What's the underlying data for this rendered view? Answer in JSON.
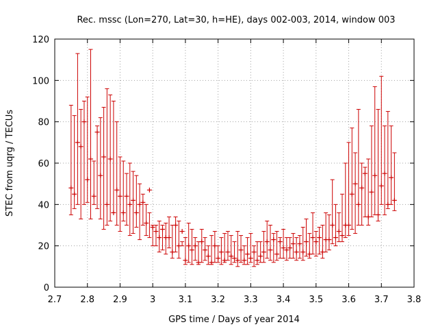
{
  "chart_data": {
    "type": "scatter",
    "style": "errorbars",
    "title": "Rec. mssc (Lon=270, Lat=30, h=HE), days 002-003, 2014, window 003",
    "xlabel": "GPS time / Days of year 2014",
    "ylabel": "STEC from uqrg / TECUs",
    "xlim": [
      2.7,
      3.8
    ],
    "ylim": [
      0,
      120
    ],
    "x_ticks": [
      "2.7",
      "2.8",
      "2.9",
      "3",
      "3.1",
      "3.2",
      "3.3",
      "3.4",
      "3.5",
      "3.6",
      "3.7",
      "3.8"
    ],
    "y_ticks": [
      "0",
      "20",
      "40",
      "60",
      "80",
      "100",
      "120"
    ],
    "grid": true,
    "color": "#cc0000",
    "grid_color": "#a0a0a0",
    "series": [
      {
        "x": [
          2.75,
          2.76,
          2.77,
          2.78,
          2.79,
          2.8,
          2.81,
          2.82,
          2.83,
          2.84,
          2.85,
          2.86,
          2.87,
          2.88,
          2.89,
          2.9,
          2.91,
          2.92,
          2.93,
          2.94,
          2.95,
          2.96,
          2.97,
          2.98,
          2.99,
          3.0,
          3.01,
          3.02,
          3.03,
          3.04,
          3.05,
          3.06,
          3.07,
          3.08,
          3.09,
          3.1,
          3.11,
          3.12,
          3.13,
          3.14,
          3.15,
          3.16,
          3.17,
          3.18,
          3.19,
          3.2,
          3.21,
          3.22,
          3.23,
          3.24,
          3.25,
          3.26,
          3.27,
          3.28,
          3.29,
          3.3,
          3.31,
          3.32,
          3.33,
          3.34,
          3.35,
          3.36,
          3.37,
          3.38,
          3.39,
          3.4,
          3.41,
          3.42,
          3.43,
          3.44,
          3.45,
          3.46,
          3.47,
          3.48,
          3.49,
          3.5,
          3.51,
          3.52,
          3.53,
          3.54,
          3.55,
          3.56,
          3.57,
          3.58,
          3.59,
          3.6,
          3.61,
          3.62,
          3.63,
          3.64,
          3.65,
          3.66,
          3.67,
          3.68,
          3.69,
          3.7,
          3.71,
          3.72,
          3.73,
          3.74
        ],
        "values": [
          48,
          45,
          70,
          68,
          80,
          52,
          62,
          44,
          75,
          54,
          63,
          40,
          62,
          36,
          47,
          44,
          36,
          44,
          40,
          42,
          36,
          40,
          41,
          31,
          47,
          29,
          27,
          24,
          28,
          24,
          24,
          17,
          30,
          20,
          27,
          13,
          20,
          18,
          20,
          12,
          22,
          18,
          15,
          12,
          20,
          14,
          17,
          13,
          17,
          15,
          14,
          13,
          18,
          13,
          16,
          14,
          17,
          13,
          15,
          17,
          22,
          18,
          23,
          16,
          22,
          19,
          18,
          19,
          21,
          17,
          21,
          17,
          22,
          16,
          24,
          22,
          24,
          17,
          23,
          23,
          30,
          24,
          27,
          25,
          30,
          30,
          45,
          50,
          40,
          48,
          55,
          34,
          46,
          54,
          35,
          49,
          55,
          40,
          53,
          42
        ],
        "upper": [
          88,
          83,
          113,
          86,
          90,
          92,
          115,
          61,
          78,
          82,
          87,
          96,
          93,
          90,
          80,
          63,
          61,
          55,
          60,
          56,
          54,
          50,
          45,
          40,
          36,
          30,
          30,
          32,
          30,
          31,
          34,
          30,
          34,
          32,
          22,
          24,
          31,
          28,
          24,
          22,
          28,
          24,
          20,
          25,
          27,
          20,
          24,
          26,
          27,
          25,
          22,
          27,
          25,
          20,
          24,
          26,
          20,
          22,
          22,
          27,
          32,
          30,
          26,
          27,
          24,
          28,
          24,
          24,
          26,
          24,
          25,
          29,
          33,
          26,
          36,
          27,
          29,
          30,
          36,
          35,
          52,
          40,
          36,
          45,
          60,
          70,
          77,
          65,
          86,
          60,
          58,
          62,
          78,
          97,
          86,
          102,
          78,
          85,
          78,
          65
        ],
        "lower": [
          35,
          38,
          40,
          33,
          40,
          41,
          33,
          40,
          38,
          33,
          28,
          30,
          32,
          36,
          30,
          27,
          32,
          30,
          25,
          26,
          29,
          23,
          30,
          25,
          24,
          20,
          20,
          17,
          18,
          16,
          19,
          14,
          17,
          14,
          20,
          11,
          12,
          11,
          13,
          11,
          12,
          13,
          11,
          11,
          12,
          12,
          11,
          12,
          13,
          11,
          12,
          10,
          12,
          11,
          11,
          12,
          10,
          11,
          12,
          12,
          14,
          13,
          12,
          13,
          14,
          14,
          13,
          14,
          14,
          13,
          14,
          13,
          15,
          14,
          16,
          15,
          16,
          14,
          17,
          18,
          21,
          20,
          22,
          22,
          24,
          25,
          28,
          26,
          30,
          30,
          34,
          30,
          34,
          35,
          32,
          40,
          35,
          38,
          40,
          37
        ]
      }
    ]
  }
}
